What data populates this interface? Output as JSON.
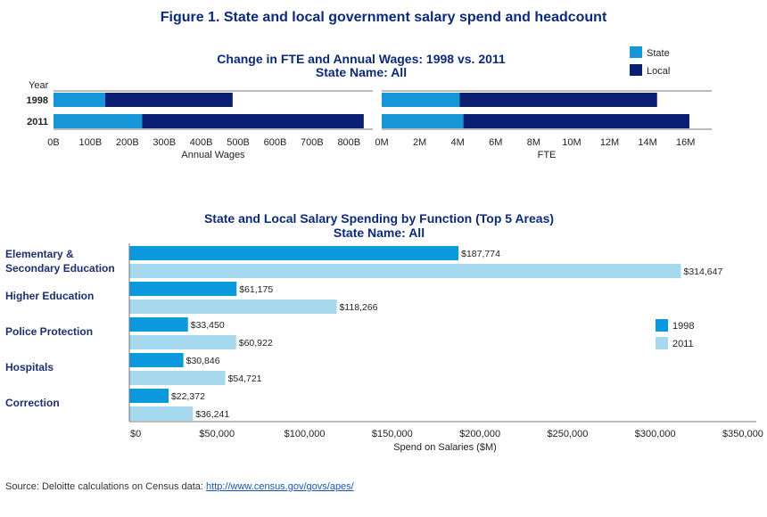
{
  "figure_title": "Figure 1. State and local government salary spend and headcount",
  "source": {
    "prefix": "Source: Deloitte calculations on Census data: ",
    "link_text": "http://www.census.gov/govs/apes/"
  },
  "colors": {
    "state": "#1796d9",
    "local": "#0b1f72",
    "y1998": "#0b98dd",
    "y2011": "#a6d8ee",
    "axis": "#777777",
    "title": "#0b2a78"
  },
  "chart_data": [
    {
      "id": "wages",
      "type": "bar",
      "stacked": true,
      "orientation": "horizontal",
      "title": "Change in FTE and Annual Wages: 1998 vs. 2011",
      "subtitle": "State Name: All",
      "y_axis_title": "Year",
      "categories": [
        "1998",
        "2011"
      ],
      "series": [
        {
          "name": "State",
          "values": [
            140,
            240
          ]
        },
        {
          "name": "Local",
          "values": [
            345,
            600
          ]
        }
      ],
      "xlabel": "Annual Wages",
      "xlim": [
        0,
        850
      ],
      "ticks": [
        0,
        100,
        200,
        300,
        400,
        500,
        600,
        700,
        800
      ],
      "tick_labels": [
        "0B",
        "100B",
        "200B",
        "300B",
        "400B",
        "500B",
        "600B",
        "700B",
        "800B"
      ],
      "legend_position": "top-right"
    },
    {
      "id": "fte",
      "type": "bar",
      "stacked": true,
      "orientation": "horizontal",
      "categories": [
        "1998",
        "2011"
      ],
      "series": [
        {
          "name": "State",
          "values": [
            4.1,
            4.3
          ]
        },
        {
          "name": "Local",
          "values": [
            10.4,
            11.9
          ]
        }
      ],
      "xlabel": "FTE",
      "xlim": [
        0,
        17
      ],
      "ticks": [
        0,
        2,
        4,
        6,
        8,
        10,
        12,
        14,
        16
      ],
      "tick_labels": [
        "0M",
        "2M",
        "4M",
        "6M",
        "8M",
        "10M",
        "12M",
        "14M",
        "16M"
      ]
    },
    {
      "id": "function",
      "type": "bar",
      "orientation": "horizontal",
      "title": "State and Local Salary Spending by Function (Top 5 Areas)",
      "subtitle": "State Name: All",
      "categories": [
        [
          "Elementary &",
          "Secondary Education"
        ],
        [
          "Higher Education"
        ],
        [
          "Police Protection"
        ],
        [
          "Hospitals"
        ],
        [
          "Correction"
        ]
      ],
      "series": [
        {
          "name": "1998",
          "values": [
            187774,
            61175,
            33450,
            30846,
            22372
          ],
          "labels": [
            "$187,774",
            "$61,175",
            "$33,450",
            "$30,846",
            "$22,372"
          ]
        },
        {
          "name": "2011",
          "values": [
            314647,
            118266,
            60922,
            54721,
            36241
          ],
          "labels": [
            "$314,647",
            "$118,266",
            "$60,922",
            "$54,721",
            "$36,241"
          ]
        }
      ],
      "xlabel": "Spend on Salaries ($M)",
      "xlim": [
        0,
        350000
      ],
      "ticks": [
        0,
        50000,
        100000,
        150000,
        200000,
        250000,
        300000,
        350000
      ],
      "tick_labels": [
        "$0",
        "$50,000",
        "$100,000",
        "$150,000",
        "$200,000",
        "$250,000",
        "$300,000",
        "$350,000"
      ],
      "legend_position": "right"
    }
  ]
}
